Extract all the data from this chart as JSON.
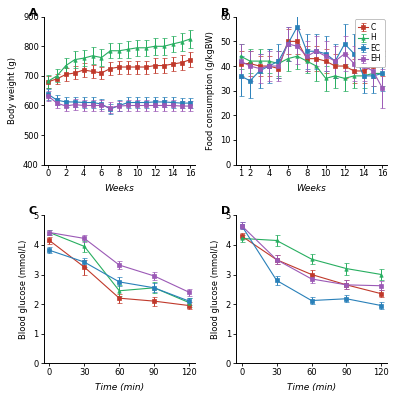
{
  "panel_A": {
    "label": "A",
    "xlabel": "Weeks",
    "ylabel": "Body weight (g)",
    "xlim": [
      -0.5,
      16.5
    ],
    "ylim": [
      400,
      900
    ],
    "yticks": [
      400,
      500,
      600,
      700,
      800,
      900
    ],
    "xticks": [
      0,
      2,
      4,
      6,
      8,
      10,
      12,
      14,
      16
    ],
    "series": {
      "C": {
        "x": [
          0,
          1,
          2,
          3,
          4,
          5,
          6,
          7,
          8,
          9,
          10,
          11,
          12,
          13,
          14,
          15,
          16
        ],
        "y": [
          680,
          690,
          705,
          710,
          720,
          715,
          710,
          725,
          730,
          730,
          730,
          730,
          735,
          735,
          740,
          745,
          755
        ],
        "err": [
          20,
          18,
          22,
          22,
          25,
          22,
          20,
          22,
          22,
          22,
          22,
          22,
          25,
          25,
          25,
          25,
          25
        ],
        "color": "#c0392b",
        "marker": "s"
      },
      "H": {
        "x": [
          0,
          1,
          2,
          3,
          4,
          5,
          6,
          7,
          8,
          9,
          10,
          11,
          12,
          13,
          14,
          15,
          16
        ],
        "y": [
          682,
          700,
          735,
          755,
          760,
          768,
          762,
          785,
          785,
          790,
          795,
          795,
          800,
          800,
          808,
          815,
          825
        ],
        "err": [
          22,
          22,
          25,
          28,
          28,
          28,
          28,
          25,
          25,
          28,
          28,
          28,
          28,
          28,
          28,
          30,
          30
        ],
        "color": "#27ae60",
        "marker": "^"
      },
      "EC": {
        "x": [
          0,
          1,
          2,
          3,
          4,
          5,
          6,
          7,
          8,
          9,
          10,
          11,
          12,
          13,
          14,
          15,
          16
        ],
        "y": [
          638,
          618,
          612,
          612,
          610,
          610,
          605,
          588,
          600,
          610,
          610,
          610,
          612,
          612,
          610,
          608,
          608
        ],
        "err": [
          18,
          18,
          18,
          18,
          18,
          18,
          18,
          18,
          18,
          18,
          18,
          18,
          18,
          18,
          18,
          18,
          18
        ],
        "color": "#2980b9",
        "marker": "s"
      },
      "EH": {
        "x": [
          0,
          1,
          2,
          3,
          4,
          5,
          6,
          7,
          8,
          9,
          10,
          11,
          12,
          13,
          14,
          15,
          16
        ],
        "y": [
          632,
          608,
          598,
          603,
          600,
          600,
          600,
          593,
          598,
          600,
          600,
          600,
          600,
          600,
          600,
          598,
          598
        ],
        "err": [
          18,
          18,
          18,
          18,
          18,
          18,
          18,
          18,
          18,
          18,
          18,
          18,
          18,
          18,
          18,
          18,
          18
        ],
        "color": "#9b59b6",
        "marker": "s"
      }
    }
  },
  "panel_B": {
    "label": "B",
    "xlabel": "Weeks",
    "ylabel": "Food consumption (g/kgBW)",
    "xlim": [
      0.5,
      16.5
    ],
    "ylim": [
      0,
      60
    ],
    "yticks": [
      0,
      10,
      20,
      30,
      40,
      50,
      60
    ],
    "xticks": [
      1,
      2,
      4,
      6,
      8,
      10,
      12,
      14,
      16
    ],
    "series": {
      "C": {
        "x": [
          1,
          2,
          3,
          4,
          5,
          6,
          7,
          8,
          9,
          10,
          11,
          12,
          13,
          14,
          15,
          16
        ],
        "y": [
          41,
          41,
          40,
          40,
          39,
          50,
          50,
          43,
          43,
          42,
          40,
          40,
          38,
          38,
          40,
          41
        ],
        "err": [
          5,
          5,
          4,
          4,
          4,
          5,
          5,
          5,
          5,
          5,
          5,
          5,
          5,
          5,
          5,
          5
        ],
        "color": "#c0392b",
        "marker": "s"
      },
      "H": {
        "x": [
          1,
          2,
          3,
          4,
          5,
          6,
          7,
          8,
          9,
          10,
          11,
          12,
          13,
          14,
          15,
          16
        ],
        "y": [
          44,
          42,
          42,
          42,
          41,
          43,
          44,
          42,
          40,
          35,
          36,
          35,
          36,
          36,
          37,
          37
        ],
        "err": [
          5,
          5,
          5,
          5,
          5,
          5,
          5,
          5,
          6,
          5,
          5,
          5,
          5,
          5,
          5,
          5
        ],
        "color": "#27ae60",
        "marker": "^"
      },
      "EC": {
        "x": [
          1,
          2,
          3,
          4,
          5,
          6,
          7,
          8,
          9,
          10,
          11,
          12,
          13,
          14,
          15,
          16
        ],
        "y": [
          36,
          34,
          38,
          40,
          42,
          49,
          56,
          46,
          46,
          45,
          42,
          49,
          45,
          36,
          36,
          37
        ],
        "err": [
          8,
          7,
          7,
          7,
          7,
          7,
          8,
          7,
          7,
          7,
          7,
          8,
          8,
          7,
          7,
          7
        ],
        "color": "#2980b9",
        "marker": "s"
      },
      "EH": {
        "x": [
          1,
          2,
          3,
          4,
          5,
          6,
          7,
          8,
          9,
          10,
          11,
          12,
          13,
          14,
          15,
          16
        ],
        "y": [
          42,
          40,
          39,
          40,
          40,
          49,
          48,
          44,
          46,
          44,
          42,
          45,
          41,
          40,
          38,
          31
        ],
        "err": [
          7,
          6,
          6,
          6,
          6,
          7,
          7,
          6,
          6,
          6,
          6,
          7,
          7,
          6,
          6,
          8
        ],
        "color": "#9b59b6",
        "marker": "s"
      }
    }
  },
  "panel_C": {
    "label": "C",
    "xlabel": "Time (min)",
    "ylabel": "Blood glucose (mmol/L)",
    "xlim": [
      -5,
      125
    ],
    "ylim": [
      0,
      5
    ],
    "yticks": [
      0,
      1,
      2,
      3,
      4,
      5
    ],
    "xticks": [
      0,
      30,
      60,
      90,
      120
    ],
    "series": {
      "C": {
        "x": [
          0,
          30,
          60,
          90,
          120
        ],
        "y": [
          4.15,
          3.25,
          2.2,
          2.1,
          1.95
        ],
        "err": [
          0.12,
          0.25,
          0.15,
          0.15,
          0.12
        ],
        "color": "#c0392b",
        "marker": "s"
      },
      "H": {
        "x": [
          0,
          30,
          60,
          90,
          120
        ],
        "y": [
          4.42,
          3.95,
          2.45,
          2.55,
          2.05
        ],
        "err": [
          0.1,
          0.18,
          0.18,
          0.18,
          0.15
        ],
        "color": "#27ae60",
        "marker": "^"
      },
      "EC": {
        "x": [
          0,
          30,
          60,
          90,
          120
        ],
        "y": [
          3.82,
          3.42,
          2.75,
          2.55,
          2.1
        ],
        "err": [
          0.1,
          0.15,
          0.15,
          0.15,
          0.12
        ],
        "color": "#2980b9",
        "marker": "s"
      },
      "EH": {
        "x": [
          0,
          30,
          60,
          90,
          120
        ],
        "y": [
          4.42,
          4.22,
          3.32,
          2.95,
          2.4
        ],
        "err": [
          0.1,
          0.12,
          0.15,
          0.12,
          0.12
        ],
        "color": "#9b59b6",
        "marker": "s"
      }
    }
  },
  "panel_D": {
    "label": "D",
    "xlabel": "Time (min)",
    "ylabel": "Blood glucose (mmol/L)",
    "xlim": [
      -5,
      125
    ],
    "ylim": [
      0,
      5
    ],
    "yticks": [
      0,
      1,
      2,
      3,
      4,
      5
    ],
    "xticks": [
      0,
      30,
      60,
      90,
      120
    ],
    "series": {
      "C": {
        "x": [
          0,
          30,
          60,
          90,
          120
        ],
        "y": [
          4.3,
          3.5,
          3.0,
          2.65,
          2.35
        ],
        "err": [
          0.1,
          0.15,
          0.15,
          0.15,
          0.12
        ],
        "color": "#c0392b",
        "marker": "s"
      },
      "H": {
        "x": [
          0,
          30,
          60,
          90,
          120
        ],
        "y": [
          4.22,
          4.15,
          3.52,
          3.2,
          3.0
        ],
        "err": [
          0.12,
          0.18,
          0.18,
          0.2,
          0.18
        ],
        "color": "#27ae60",
        "marker": "^"
      },
      "EC": {
        "x": [
          0,
          30,
          60,
          90,
          120
        ],
        "y": [
          4.65,
          2.8,
          2.12,
          2.18,
          1.95
        ],
        "err": [
          0.12,
          0.15,
          0.12,
          0.12,
          0.12
        ],
        "color": "#2980b9",
        "marker": "s"
      },
      "EH": {
        "x": [
          0,
          30,
          60,
          90,
          120
        ],
        "y": [
          4.65,
          3.5,
          2.85,
          2.65,
          2.62
        ],
        "err": [
          0.12,
          0.15,
          0.15,
          0.15,
          0.15
        ],
        "color": "#9b59b6",
        "marker": "s"
      }
    }
  },
  "background": "#ffffff",
  "legend_order": [
    "C",
    "H",
    "EC",
    "EH"
  ]
}
